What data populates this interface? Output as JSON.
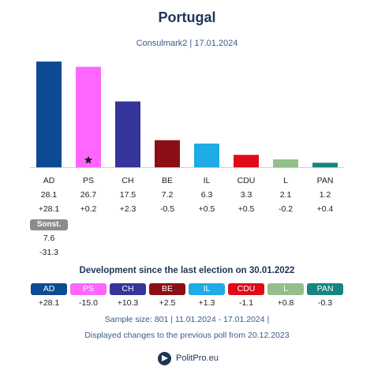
{
  "chart_data": {
    "type": "bar",
    "title": "Portugal",
    "subtitle": "Consulmark2 | 17.01.2024",
    "categories": [
      "AD",
      "PS",
      "CH",
      "BE",
      "IL",
      "CDU",
      "L",
      "PAN"
    ],
    "values": [
      28.1,
      26.7,
      17.5,
      7.2,
      6.3,
      3.3,
      2.1,
      1.2
    ],
    "value_labels": [
      "28.1",
      "26.7",
      "17.5",
      "7.2",
      "6.3",
      "3.3",
      "2.1",
      "1.2"
    ],
    "changes_previous_poll": [
      "+28.1",
      "+0.2",
      "+2.3",
      "-0.5",
      "+0.5",
      "+0.5",
      "-0.2",
      "+0.4"
    ],
    "colors": [
      "#0d4a94",
      "#ff66ff",
      "#35359b",
      "#8b0f15",
      "#1eabe6",
      "#e00a19",
      "#94bf8a",
      "#17857f"
    ],
    "star_on": "PS",
    "others": {
      "label": "Sonst.",
      "value": "7.6",
      "change": "-31.3"
    },
    "ylim": [
      0,
      28.1
    ],
    "development": {
      "title": "Development since the last election on 30.01.2022",
      "changes": [
        "+28.1",
        "-15.0",
        "+10.3",
        "+2.5",
        "+1.3",
        "-1.1",
        "+0.8",
        "-0.3"
      ]
    }
  },
  "footer": {
    "sample": "Sample size: 801 | 11.01.2024 - 17.01.2024 |",
    "note": "Displayed changes to the previous poll from 20.12.2023",
    "brand": "PolitPro.eu"
  }
}
